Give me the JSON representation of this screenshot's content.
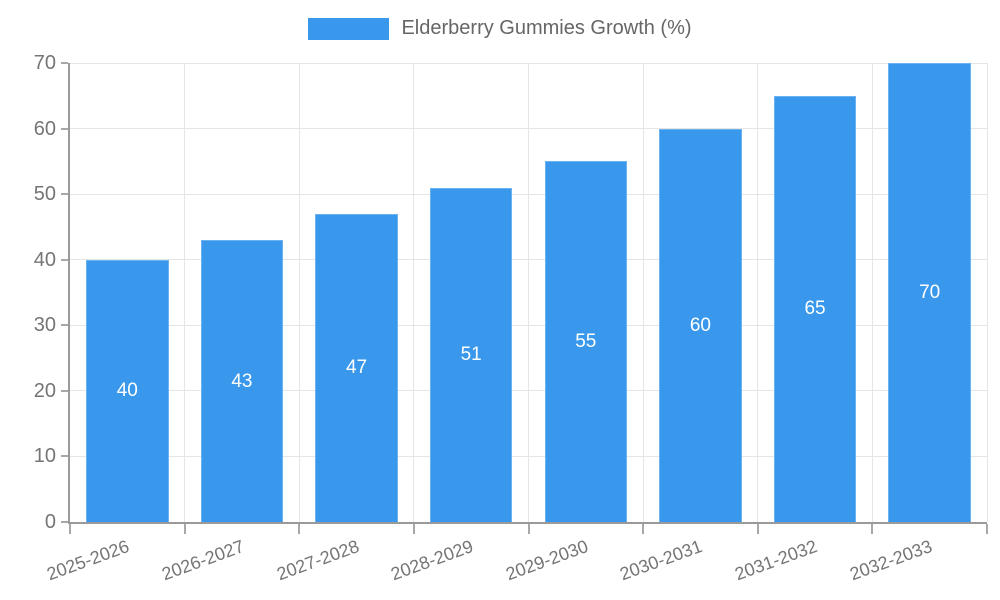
{
  "chart_data": {
    "type": "bar",
    "title": "Elderberry Gummies Growth (%)",
    "categories": [
      "2025-2026",
      "2026-2027",
      "2027-2028",
      "2028-2029",
      "2029-2030",
      "2030-2031",
      "2031-2032",
      "2032-2033"
    ],
    "values": [
      40,
      43,
      47,
      51,
      55,
      60,
      65,
      70
    ],
    "value_labels": [
      "40",
      "43",
      "47",
      "51",
      "55",
      "60",
      "65",
      "70"
    ],
    "xlabel": "",
    "ylabel": "",
    "ylim": [
      0,
      70
    ],
    "yticks": [
      0,
      10,
      20,
      30,
      40,
      50,
      60,
      70
    ],
    "grid": true,
    "legend_position": "top",
    "colors": {
      "bar": "#3a98ec",
      "bar_value_text": "#ffffff",
      "gridline": "#e5e5e5",
      "axis_line": "#9a9a9a",
      "tick_mark": "#a8a8a8",
      "tick_text": "#757575",
      "legend_text": "#666666"
    }
  }
}
